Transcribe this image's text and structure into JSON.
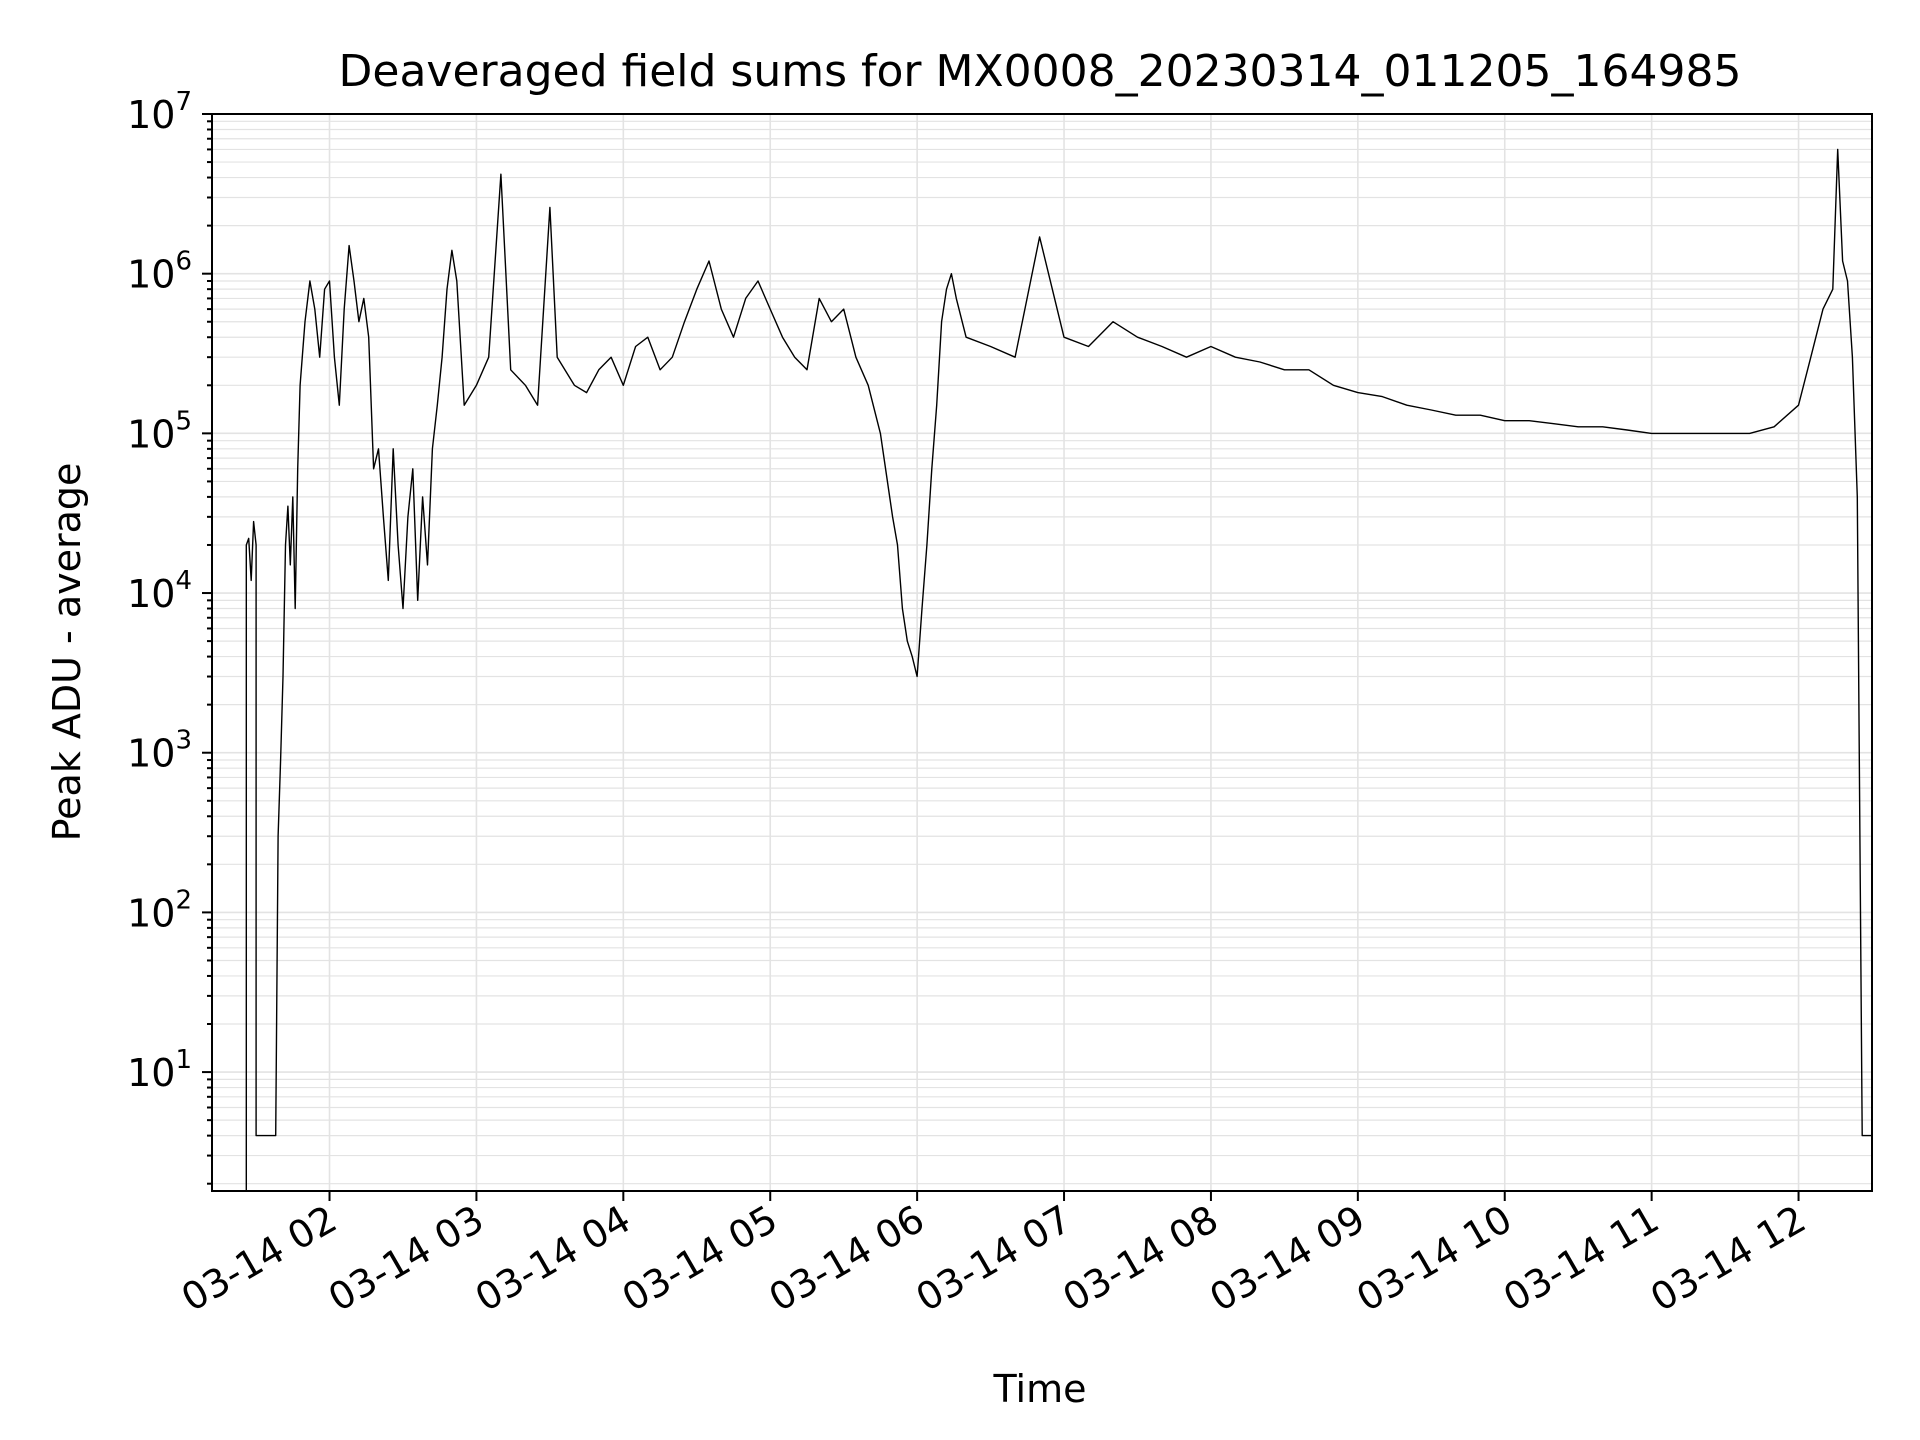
{
  "chart_data": {
    "type": "line",
    "title": "Deaveraged field sums for MX0008_20230314_011205_164985",
    "xlabel": "Time",
    "ylabel": "Peak ADU - average",
    "yscale": "log",
    "ylim": [
      1.8,
      10000000
    ],
    "xlim": [
      "03-14 01:12",
      "03-14 12:30"
    ],
    "grid": true,
    "x_tick_labels": [
      "03-14 02",
      "03-14 03",
      "03-14 04",
      "03-14 05",
      "03-14 06",
      "03-14 07",
      "03-14 08",
      "03-14 09",
      "03-14 10",
      "03-14 11",
      "03-14 12"
    ],
    "y_tick_labels": [
      {
        "base": "10",
        "exp": "1",
        "value": 10
      },
      {
        "base": "10",
        "exp": "2",
        "value": 100
      },
      {
        "base": "10",
        "exp": "3",
        "value": 1000
      },
      {
        "base": "10",
        "exp": "4",
        "value": 10000
      },
      {
        "base": "10",
        "exp": "5",
        "value": 100000
      },
      {
        "base": "10",
        "exp": "6",
        "value": 1000000
      },
      {
        "base": "10",
        "exp": "7",
        "value": 10000000
      }
    ],
    "series": [
      {
        "color": "#000000",
        "x": [
          "03-14 01:26",
          "03-14 01:26",
          "03-14 01:27",
          "03-14 01:28",
          "03-14 01:29",
          "03-14 01:30",
          "03-14 01:30",
          "03-14 01:36",
          "03-14 01:37",
          "03-14 01:38",
          "03-14 01:39",
          "03-14 01:40",
          "03-14 01:41",
          "03-14 01:42",
          "03-14 01:43",
          "03-14 01:44",
          "03-14 01:45",
          "03-14 01:46",
          "03-14 01:47",
          "03-14 01:48",
          "03-14 01:50",
          "03-14 01:52",
          "03-14 01:54",
          "03-14 01:56",
          "03-14 01:58",
          "03-14 02:00",
          "03-14 02:02",
          "03-14 02:04",
          "03-14 02:06",
          "03-14 02:08",
          "03-14 02:10",
          "03-14 02:12",
          "03-14 02:14",
          "03-14 02:16",
          "03-14 02:18",
          "03-14 02:20",
          "03-14 02:22",
          "03-14 02:24",
          "03-14 02:26",
          "03-14 02:28",
          "03-14 02:30",
          "03-14 02:32",
          "03-14 02:34",
          "03-14 02:36",
          "03-14 02:38",
          "03-14 02:40",
          "03-14 02:42",
          "03-14 02:44",
          "03-14 02:46",
          "03-14 02:48",
          "03-14 02:50",
          "03-14 02:52",
          "03-14 02:55",
          "03-14 03:00",
          "03-14 03:05",
          "03-14 03:10",
          "03-14 03:14",
          "03-14 03:20",
          "03-14 03:25",
          "03-14 03:30",
          "03-14 03:33",
          "03-14 03:40",
          "03-14 03:45",
          "03-14 03:50",
          "03-14 03:55",
          "03-14 04:00",
          "03-14 04:05",
          "03-14 04:10",
          "03-14 04:15",
          "03-14 04:20",
          "03-14 04:25",
          "03-14 04:30",
          "03-14 04:35",
          "03-14 04:40",
          "03-14 04:45",
          "03-14 04:50",
          "03-14 04:55",
          "03-14 05:00",
          "03-14 05:05",
          "03-14 05:10",
          "03-14 05:15",
          "03-14 05:20",
          "03-14 05:25",
          "03-14 05:30",
          "03-14 05:35",
          "03-14 05:40",
          "03-14 05:45",
          "03-14 05:50",
          "03-14 05:52",
          "03-14 05:54",
          "03-14 05:56",
          "03-14 05:58",
          "03-14 06:00",
          "03-14 06:02",
          "03-14 06:04",
          "03-14 06:06",
          "03-14 06:08",
          "03-14 06:10",
          "03-14 06:12",
          "03-14 06:14",
          "03-14 06:16",
          "03-14 06:20",
          "03-14 06:30",
          "03-14 06:40",
          "03-14 06:50",
          "03-14 07:00",
          "03-14 07:10",
          "03-14 07:20",
          "03-14 07:30",
          "03-14 07:40",
          "03-14 07:50",
          "03-14 08:00",
          "03-14 08:10",
          "03-14 08:20",
          "03-14 08:30",
          "03-14 08:40",
          "03-14 08:50",
          "03-14 09:00",
          "03-14 09:10",
          "03-14 09:20",
          "03-14 09:30",
          "03-14 09:40",
          "03-14 09:50",
          "03-14 10:00",
          "03-14 10:10",
          "03-14 10:20",
          "03-14 10:30",
          "03-14 10:40",
          "03-14 10:50",
          "03-14 11:00",
          "03-14 11:10",
          "03-14 11:20",
          "03-14 11:30",
          "03-14 11:40",
          "03-14 11:50",
          "03-14 12:00",
          "03-14 12:05",
          "03-14 12:10",
          "03-14 12:14",
          "03-14 12:16",
          "03-14 12:18",
          "03-14 12:20",
          "03-14 12:22",
          "03-14 12:24",
          "03-14 12:26",
          "03-14 12:28",
          "03-14 12:30"
        ],
        "y": [
          1.8,
          20000,
          22000,
          12000,
          28000,
          20000,
          4,
          4,
          4,
          4,
          300,
          900,
          3000,
          20000,
          35000,
          15000,
          40000,
          8000,
          60000,
          200000,
          500000,
          900000,
          600000,
          300000,
          800000,
          900000,
          300000,
          150000,
          600000,
          1500000,
          900000,
          500000,
          700000,
          400000,
          60000,
          80000,
          30000,
          12000,
          80000,
          20000,
          8000,
          30000,
          60000,
          9000,
          40000,
          15000,
          80000,
          150000,
          300000,
          800000,
          1400000,
          900000,
          150000,
          200000,
          300000,
          4200000,
          250000,
          200000,
          150000,
          2600000,
          300000,
          200000,
          180000,
          250000,
          300000,
          200000,
          350000,
          400000,
          250000,
          300000,
          500000,
          800000,
          1200000,
          600000,
          400000,
          700000,
          900000,
          600000,
          400000,
          300000,
          250000,
          700000,
          500000,
          600000,
          300000,
          200000,
          100000,
          30000,
          20000,
          8000,
          5000,
          4000,
          3000,
          8000,
          20000,
          60000,
          150000,
          500000,
          800000,
          1000000,
          700000,
          400000,
          350000,
          300000,
          1700000,
          400000,
          350000,
          500000,
          400000,
          350000,
          300000,
          350000,
          300000,
          280000,
          250000,
          250000,
          200000,
          180000,
          170000,
          150000,
          140000,
          130000,
          130000,
          120000,
          120000,
          115000,
          110000,
          110000,
          105000,
          100000,
          100000,
          100000,
          100000,
          100000,
          110000,
          150000,
          300000,
          600000,
          800000,
          6000000,
          1200000,
          900000,
          300000,
          40000,
          4,
          4,
          4
        ]
      }
    ]
  }
}
